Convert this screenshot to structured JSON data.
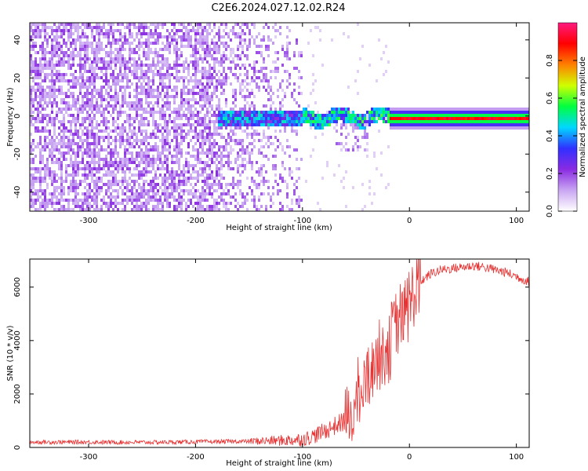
{
  "title": "C2E6.2024.027.12.02.R24",
  "chart_data": [
    {
      "type": "heatmap",
      "xlabel": "Height of straight line (km)",
      "ylabel": "Frequency (Hz)",
      "xlim": [
        -355,
        112
      ],
      "ylim": [
        -50,
        49
      ],
      "xticks": [
        -300,
        -200,
        -100,
        0,
        100
      ],
      "xtick_labels": [
        "-300",
        "-200",
        "-100",
        "0",
        "100"
      ],
      "yticks": [
        -40,
        -20,
        0,
        20,
        40
      ],
      "ytick_labels": [
        "-40",
        "-20",
        "0",
        "20",
        "40"
      ],
      "colorbar": {
        "label": "Normalized spectral amplitude",
        "range": [
          0,
          1
        ],
        "ticks": [
          0.0,
          0.2,
          0.4,
          0.6,
          0.8
        ],
        "tick_labels": [
          "0.0",
          "0.2",
          "0.4",
          "0.6",
          "0.8"
        ],
        "colors": [
          "#ffffff",
          "#c9a6f2",
          "#8a2be2",
          "#3030ff",
          "#00d8ff",
          "#00ff40",
          "#d0ff00",
          "#ff8000",
          "#ff0000",
          "#ff1a80"
        ]
      },
      "regions": [
        {
          "x_range": [
            -355,
            -180
          ],
          "description_level": 0.15
        },
        {
          "x_range": [
            -180,
            -100
          ],
          "description_level": 0.25
        },
        {
          "x_range": [
            -20,
            112
          ],
          "description_level": 0.9
        }
      ]
    },
    {
      "type": "line",
      "xlabel": "Height of straight line (km)",
      "ylabel": "SNR (10 * v/v)",
      "xlim": [
        -355,
        112
      ],
      "ylim": [
        0,
        7050
      ],
      "xticks": [
        -300,
        -200,
        -100,
        0,
        100
      ],
      "xtick_labels": [
        "-300",
        "-200",
        "-100",
        "0",
        "100"
      ],
      "yticks": [
        0,
        2000,
        4000,
        6000
      ],
      "ytick_labels": [
        "0",
        "2000",
        "4000",
        "6000"
      ],
      "series": [
        {
          "name": "SNR",
          "color": "#e83030",
          "x": [
            -355,
            -300,
            -250,
            -200,
            -150,
            -120,
            -100,
            -90,
            -80,
            -70,
            -60,
            -50,
            -45,
            -40,
            -35,
            -30,
            -25,
            -20,
            -15,
            -10,
            -5,
            0,
            5,
            10,
            20,
            30,
            40,
            50,
            60,
            70,
            80,
            90,
            100,
            112
          ],
          "y": [
            200,
            200,
            190,
            210,
            230,
            260,
            300,
            420,
            600,
            800,
            1000,
            1500,
            2000,
            2600,
            3000,
            3400,
            3600,
            3900,
            4300,
            4700,
            5000,
            5400,
            5800,
            6200,
            6500,
            6650,
            6700,
            6750,
            6800,
            6750,
            6650,
            6550,
            6400,
            6200
          ]
        }
      ]
    }
  ]
}
